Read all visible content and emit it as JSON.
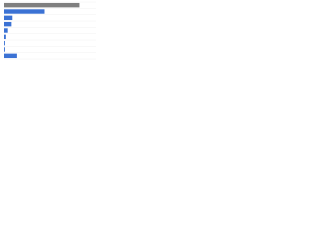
{
  "chart_data": {
    "type": "bar",
    "orientation": "horizontal",
    "categories": [
      null,
      null,
      null,
      null,
      null,
      null,
      null,
      null,
      null
    ],
    "values": [
      82,
      44,
      9,
      8,
      4,
      2,
      1,
      1,
      14
    ],
    "colors": [
      "#7f7f7f",
      "#3b72d4",
      "#3b72d4",
      "#3b72d4",
      "#3b72d4",
      "#3b72d4",
      "#3b72d4",
      "#3b72d4",
      "#3b72d4"
    ],
    "xlim": [
      0,
      100
    ]
  }
}
